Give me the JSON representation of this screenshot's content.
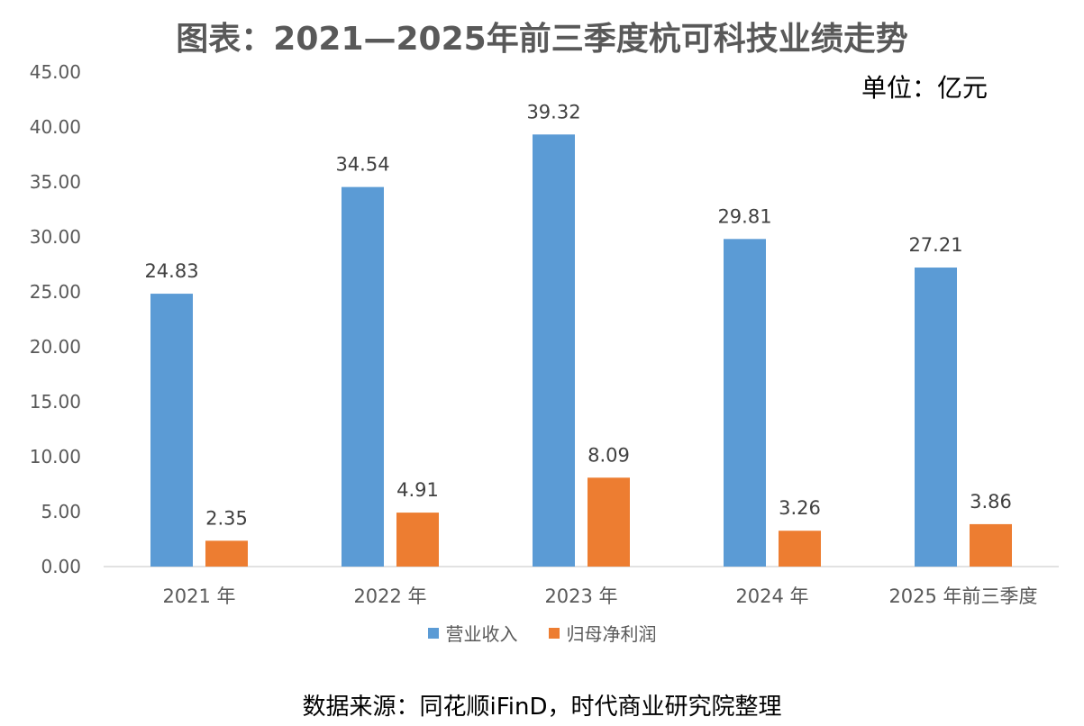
{
  "title": "图表：2021—2025年前三季度杭可科技业绩走势",
  "unit": "单位：亿元",
  "source": "数据来源：同花顺iFinD，时代商业研究院整理",
  "colors": {
    "revenue": "#5B9BD5",
    "profit": "#ED7D31",
    "axis": "#D9D9D9",
    "text": "#595959"
  },
  "chart_data": {
    "type": "bar",
    "categories": [
      "2021 年",
      "2022 年",
      "2023 年",
      "2024 年",
      "2025 年前三季度"
    ],
    "series": [
      {
        "name": "营业收入",
        "values": [
          24.83,
          34.54,
          39.32,
          29.81,
          27.21
        ],
        "labels": [
          "24.83",
          "34.54",
          "39.32",
          "29.81",
          "27.21"
        ]
      },
      {
        "name": "归母净利润",
        "values": [
          2.35,
          4.91,
          8.09,
          3.26,
          3.86
        ],
        "labels": [
          "2.35",
          "4.91",
          "8.09",
          "3.26",
          "3.86"
        ]
      }
    ],
    "ylim": [
      0,
      45
    ],
    "yticks": [
      "0.00",
      "5.00",
      "10.00",
      "15.00",
      "20.00",
      "25.00",
      "30.00",
      "35.00",
      "40.00",
      "45.00"
    ],
    "grid": false,
    "legend": "bottom"
  }
}
